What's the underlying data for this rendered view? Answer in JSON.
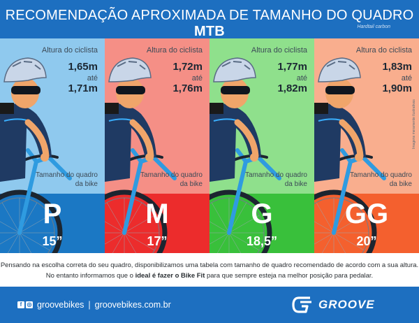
{
  "header": {
    "title_main": "RECOMENDAÇÃO APROXIMADA DE TAMANHO DO QUADRO ",
    "title_bold": "MTB",
    "subtitle": "Hardtail carbon"
  },
  "panels": [
    {
      "height_label": "Altura do ciclista",
      "height_from": "1,65m",
      "between": "até",
      "height_to": "1,71m",
      "frame_label": "Tamanho do quadro da bike",
      "size": "P",
      "frame_size": "15”",
      "color_upper": "#8fc9ee",
      "color_lower": "#1b78c4"
    },
    {
      "height_label": "Altura do ciclista",
      "height_from": "1,72m",
      "between": "até",
      "height_to": "1,76m",
      "frame_label": "Tamanho do quadro da bike",
      "size": "M",
      "frame_size": "17”",
      "color_upper": "#f58f86",
      "color_lower": "#ec2c2c"
    },
    {
      "height_label": "Altura do ciclista",
      "height_from": "1,77m",
      "between": "até",
      "height_to": "1,82m",
      "frame_label": "Tamanho do quadro da bike",
      "size": "G",
      "frame_size": "18,5”",
      "color_upper": "#8fe08c",
      "color_lower": "#39c03b"
    },
    {
      "height_label": "Altura do ciclista",
      "height_from": "1,83m",
      "between": "até",
      "height_to": "1,90m",
      "frame_label": "Tamanho do quadro da bike",
      "size": "GG",
      "frame_size": "20”",
      "color_upper": "#f9ae8e",
      "color_lower": "#f4602e"
    }
  ],
  "credit": "Imagens meramente ilustrativas",
  "info": {
    "line1": "Pensando na escolha correta do seu quadro, disponibilizamos uma tabela com tamanho de quadro recomendado de acordo com a sua altura.",
    "line2_a": "No entanto informamos que o ",
    "line2_bold": "ideal é fazer o Bike Fit",
    "line2_b": " para que sempre esteja na melhor posição para pedalar."
  },
  "footer": {
    "handle": "groovebikes",
    "separator": "|",
    "website": "groovebikes.com.br",
    "brand": "GROOVE",
    "facebook_icon": "f",
    "instagram_icon": "◎"
  },
  "colors": {
    "header_bg": "#1d6fc0",
    "footer_bg": "#1d6fc0",
    "jersey": "#1f3a63",
    "helmet": "#c9d6e8",
    "skin": "#f0a56a",
    "bike": "#2f9be0"
  }
}
